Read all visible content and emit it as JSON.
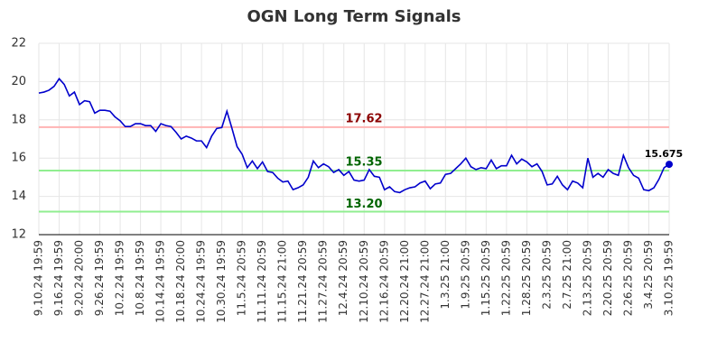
{
  "chart_data": {
    "type": "line",
    "title": "OGN Long Term Signals",
    "categories": [
      "9.10.24 19:59",
      null,
      null,
      null,
      "9.16.24 19:59",
      null,
      null,
      null,
      "9.20.24 20:00",
      null,
      null,
      null,
      "9.26.24 19:59",
      null,
      null,
      null,
      "10.2.24 19:59",
      null,
      null,
      null,
      "10.8.24 19:59",
      null,
      null,
      null,
      "10.14.24 19:59",
      null,
      null,
      null,
      "10.18.24 20:00",
      null,
      null,
      null,
      "10.24.24 19:59",
      null,
      null,
      null,
      "10.30.24 19:59",
      null,
      null,
      null,
      "11.5.24 20:59",
      null,
      null,
      null,
      "11.11.24 20:59",
      null,
      null,
      null,
      "11.15.24 21:00",
      null,
      null,
      null,
      "11.21.24 20:59",
      null,
      null,
      null,
      "11.27.24 20:59",
      null,
      null,
      null,
      "12.4.24 20:59",
      null,
      null,
      null,
      "12.10.24 20:59",
      null,
      null,
      null,
      "12.16.24 20:59",
      null,
      null,
      null,
      "12.20.24 21:00",
      null,
      null,
      null,
      "12.27.24 21:00",
      null,
      null,
      null,
      "1.3.25 21:00",
      null,
      null,
      null,
      "1.9.25 20:59",
      null,
      null,
      null,
      "1.15.25 20:59",
      null,
      null,
      null,
      "1.22.25 20:59",
      null,
      null,
      null,
      "1.28.25 20:59",
      null,
      null,
      null,
      "2.3.25 20:59",
      null,
      null,
      null,
      "2.7.25 21:00",
      null,
      null,
      null,
      "2.13.25 20:59",
      null,
      null,
      null,
      "2.20.25 20:59",
      null,
      null,
      null,
      "2.26.25 20:59",
      null,
      null,
      null,
      "3.4.25 20:59",
      null,
      null,
      null,
      "3.10.25 19:59"
    ],
    "values": [
      19.4,
      19.45,
      19.55,
      19.75,
      20.15,
      19.85,
      19.25,
      19.45,
      18.8,
      19.0,
      18.95,
      18.35,
      18.5,
      18.5,
      18.45,
      18.15,
      17.95,
      17.65,
      17.65,
      17.8,
      17.8,
      17.7,
      17.7,
      17.4,
      17.8,
      17.7,
      17.65,
      17.35,
      17.0,
      17.15,
      17.05,
      16.9,
      16.9,
      16.55,
      17.15,
      17.55,
      17.6,
      18.45,
      17.55,
      16.6,
      16.2,
      15.5,
      15.85,
      15.45,
      15.8,
      15.3,
      15.25,
      14.95,
      14.75,
      14.8,
      14.35,
      14.45,
      14.6,
      15.0,
      15.85,
      15.5,
      15.7,
      15.55,
      15.25,
      15.4,
      15.1,
      15.3,
      14.85,
      14.8,
      14.85,
      15.4,
      15.05,
      15.0,
      14.35,
      14.5,
      14.25,
      14.2,
      14.35,
      14.45,
      14.5,
      14.7,
      14.8,
      14.4,
      14.65,
      14.7,
      15.15,
      15.2,
      15.45,
      15.7,
      16.0,
      15.55,
      15.4,
      15.5,
      15.45,
      15.9,
      15.45,
      15.6,
      15.6,
      16.15,
      15.7,
      15.95,
      15.8,
      15.55,
      15.7,
      15.3,
      14.6,
      14.65,
      15.05,
      14.6,
      14.35,
      14.8,
      14.7,
      14.45,
      16.0,
      15.0,
      15.2,
      15.0,
      15.4,
      15.2,
      15.1,
      16.15,
      15.5,
      15.1,
      14.95,
      14.35,
      14.3,
      14.45,
      14.9,
      15.5,
      15.675
    ],
    "color": "#0000cc",
    "ylim": [
      12,
      22
    ],
    "yticks": [
      12,
      14,
      16,
      18,
      20,
      22
    ],
    "grid": true,
    "hlines": [
      {
        "value": 17.62,
        "label": "17.62",
        "color": "#ffb3b3",
        "text_color": "#8b0000"
      },
      {
        "value": 15.35,
        "label": "15.35",
        "color": "#90ee90",
        "text_color": "#006400"
      },
      {
        "value": 13.2,
        "label": "13.20",
        "color": "#90ee90",
        "text_color": "#006400"
      }
    ]
  }
}
